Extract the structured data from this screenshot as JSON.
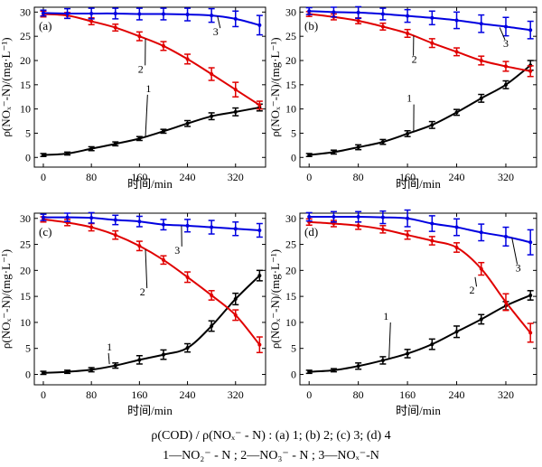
{
  "chart_data": [
    {
      "type": "line",
      "panel_label": "(a)",
      "xlabel": "时间/min",
      "ylabel": "ρ(NOₓ⁻-N)/(mg·L⁻¹)",
      "x": [
        0,
        40,
        80,
        120,
        160,
        200,
        240,
        280,
        320,
        360
      ],
      "xticks": [
        0,
        80,
        160,
        240,
        320
      ],
      "yticks": [
        0,
        5,
        10,
        15,
        20,
        25,
        30
      ],
      "xlim": [
        -15,
        370
      ],
      "ylim": [
        -2,
        31
      ],
      "series": [
        {
          "name": "1",
          "color": "#000000",
          "values": [
            0.5,
            0.8,
            1.8,
            2.8,
            3.9,
            5.4,
            7.0,
            8.5,
            9.4,
            10.3
          ],
          "errors": [
            0.3,
            0.3,
            0.4,
            0.4,
            0.4,
            0.4,
            0.6,
            0.7,
            0.8,
            0.7
          ]
        },
        {
          "name": "2",
          "color": "#e00000",
          "values": [
            29.6,
            29.3,
            28.1,
            26.8,
            25.0,
            23.0,
            20.3,
            17.2,
            14.0,
            10.8
          ],
          "errors": [
            0.6,
            0.6,
            0.7,
            0.7,
            0.9,
            0.9,
            1.0,
            1.3,
            1.5,
            0.8
          ]
        },
        {
          "name": "3",
          "color": "#0000e0",
          "values": [
            29.8,
            29.7,
            29.7,
            29.7,
            29.6,
            29.6,
            29.5,
            29.3,
            28.6,
            27.3
          ],
          "errors": [
            0.6,
            1.0,
            1.1,
            1.1,
            1.2,
            1.2,
            1.3,
            1.4,
            1.6,
            2.0
          ]
        }
      ],
      "curve_labels": [
        {
          "text": "1",
          "x": 175,
          "y": 13.5
        },
        {
          "text": "2",
          "x": 162,
          "y": 17.5
        },
        {
          "text": "3",
          "x": 287,
          "y": 25.2
        }
      ]
    },
    {
      "type": "line",
      "panel_label": "(b)",
      "xlabel": "时间/min",
      "ylabel": "ρ(NOₓ⁻-N)/(mg·L⁻¹)",
      "x": [
        0,
        40,
        80,
        120,
        160,
        200,
        240,
        280,
        320,
        360
      ],
      "xticks": [
        0,
        80,
        160,
        240,
        320
      ],
      "yticks": [
        0,
        5,
        10,
        15,
        20,
        25,
        30
      ],
      "xlim": [
        -15,
        370
      ],
      "ylim": [
        -2,
        31
      ],
      "series": [
        {
          "name": "1",
          "color": "#000000",
          "values": [
            0.5,
            1.1,
            2.1,
            3.2,
            4.9,
            6.7,
            9.3,
            12.2,
            15.0,
            19.0
          ],
          "errors": [
            0.3,
            0.4,
            0.5,
            0.5,
            0.6,
            0.7,
            0.6,
            0.8,
            0.8,
            1.0
          ]
        },
        {
          "name": "2",
          "color": "#e00000",
          "values": [
            29.6,
            29.0,
            28.2,
            27.0,
            25.6,
            23.6,
            21.8,
            20.0,
            18.8,
            17.8
          ],
          "errors": [
            0.5,
            0.6,
            0.6,
            0.7,
            0.8,
            0.9,
            0.8,
            0.9,
            1.0,
            1.1
          ]
        },
        {
          "name": "3",
          "color": "#0000e0",
          "values": [
            30.2,
            30.0,
            29.9,
            29.6,
            29.2,
            28.8,
            28.3,
            27.6,
            27.0,
            26.3
          ],
          "errors": [
            0.7,
            1.0,
            1.2,
            1.2,
            1.3,
            1.4,
            1.7,
            1.8,
            1.9,
            1.8
          ]
        }
      ],
      "curve_labels": [
        {
          "text": "1",
          "x": 163,
          "y": 11.5
        },
        {
          "text": "2",
          "x": 171,
          "y": 19.5
        },
        {
          "text": "3",
          "x": 320,
          "y": 22.8
        }
      ]
    },
    {
      "type": "line",
      "panel_label": "(c)",
      "xlabel": "时间/min",
      "ylabel": "ρ(NOₓ⁻-N)/(mg·L⁻¹)",
      "x": [
        0,
        40,
        80,
        120,
        160,
        200,
        240,
        280,
        320,
        360
      ],
      "xticks": [
        0,
        80,
        160,
        240,
        320
      ],
      "yticks": [
        0,
        5,
        10,
        15,
        20,
        25,
        30
      ],
      "xlim": [
        -15,
        370
      ],
      "ylim": [
        -2,
        31
      ],
      "series": [
        {
          "name": "1",
          "color": "#000000",
          "values": [
            0.3,
            0.5,
            0.9,
            1.7,
            2.8,
            3.8,
            5.1,
            9.3,
            14.5,
            19.0
          ],
          "errors": [
            0.3,
            0.3,
            0.4,
            0.5,
            0.8,
            0.9,
            0.8,
            1.0,
            1.1,
            1.0
          ]
        },
        {
          "name": "2",
          "color": "#e00000",
          "values": [
            29.8,
            29.2,
            28.3,
            26.8,
            24.7,
            22.0,
            18.7,
            15.2,
            11.4,
            5.7
          ],
          "errors": [
            0.5,
            0.6,
            0.7,
            0.8,
            0.9,
            0.8,
            1.0,
            0.9,
            1.0,
            1.5
          ]
        },
        {
          "name": "3",
          "color": "#0000e0",
          "values": [
            30.2,
            30.2,
            30.1,
            29.7,
            29.4,
            28.8,
            28.6,
            28.3,
            28.0,
            27.7
          ],
          "errors": [
            0.6,
            0.8,
            1.0,
            0.9,
            1.0,
            1.0,
            1.2,
            1.3,
            1.3,
            1.3
          ]
        }
      ],
      "curve_labels": [
        {
          "text": "1",
          "x": 110,
          "y": 4.6
        },
        {
          "text": "2",
          "x": 165,
          "y": 15.2
        },
        {
          "text": "3",
          "x": 223,
          "y": 23.2
        }
      ]
    },
    {
      "type": "line",
      "panel_label": "(d)",
      "xlabel": "时间/min",
      "ylabel": "ρ(NOₓ⁻-N)/(mg·L⁻¹)",
      "x": [
        0,
        40,
        80,
        120,
        160,
        200,
        240,
        280,
        320,
        360
      ],
      "xticks": [
        0,
        80,
        160,
        240,
        320
      ],
      "yticks": [
        0,
        5,
        10,
        15,
        20,
        25,
        30
      ],
      "xlim": [
        -15,
        370
      ],
      "ylim": [
        -2,
        31
      ],
      "series": [
        {
          "name": "1",
          "color": "#000000",
          "values": [
            0.5,
            0.8,
            1.6,
            2.7,
            4.0,
            5.8,
            8.2,
            10.6,
            13.2,
            15.2
          ],
          "errors": [
            0.3,
            0.3,
            0.6,
            0.7,
            0.8,
            1.0,
            1.1,
            0.9,
            0.8,
            0.9
          ]
        },
        {
          "name": "2",
          "color": "#e00000",
          "values": [
            29.3,
            29.0,
            28.6,
            27.9,
            26.8,
            25.7,
            24.4,
            20.3,
            13.9,
            8.0
          ],
          "errors": [
            0.6,
            0.6,
            0.7,
            0.7,
            0.8,
            0.8,
            0.9,
            1.2,
            1.6,
            1.8
          ]
        },
        {
          "name": "3",
          "color": "#0000e0",
          "values": [
            30.3,
            30.3,
            30.3,
            30.2,
            30.0,
            29.0,
            28.3,
            27.3,
            26.5,
            25.4
          ],
          "errors": [
            0.8,
            1.0,
            1.0,
            1.2,
            1.6,
            1.5,
            1.6,
            1.6,
            1.8,
            2.4
          ]
        }
      ],
      "curve_labels": [
        {
          "text": "1",
          "x": 125,
          "y": 10.5
        },
        {
          "text": "2",
          "x": 265,
          "y": 15.5
        },
        {
          "text": "3",
          "x": 340,
          "y": 19.8
        }
      ]
    }
  ],
  "caption": {
    "line1": "ρ(COD) / ρ(NOₓ⁻ - N) : (a) 1; (b) 2; (c) 3; (d) 4",
    "line2": "1—NO₂⁻ - N ; 2—NO₃⁻ - N ; 3—NOₓ⁻-N"
  }
}
